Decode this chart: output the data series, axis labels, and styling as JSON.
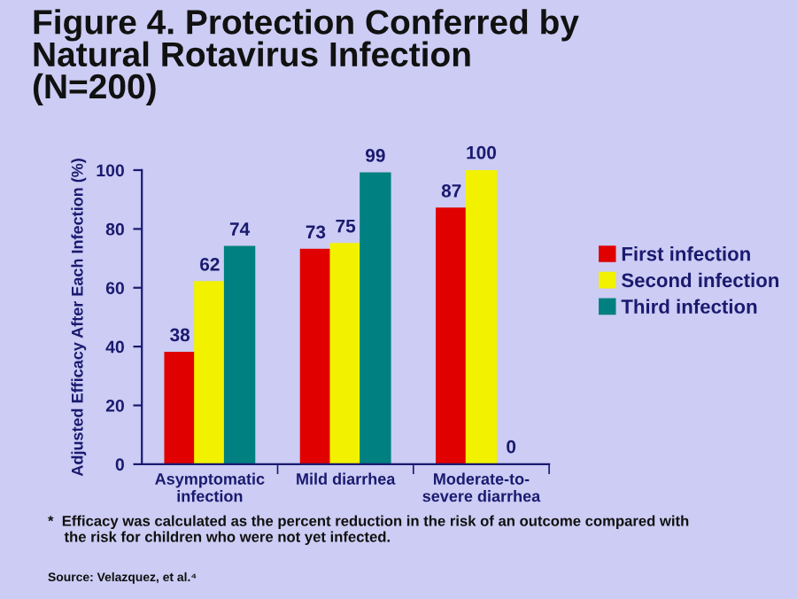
{
  "chart_data": {
    "type": "bar",
    "title": "Figure 4. Protection Conferred by\nNatural Rotavirus Infection\n(N=200)",
    "ylabel": "Adjusted Efficacy After Each Infection (%)",
    "categories": [
      "Asymptomatic\ninfection",
      "Mild diarrhea",
      "Moderate-to-\nsevere diarrhea"
    ],
    "series": [
      {
        "name": "First infection",
        "color": "#e00000",
        "values": [
          38,
          73,
          87
        ]
      },
      {
        "name": "Second infection",
        "color": "#f2f200",
        "values": [
          62,
          75,
          100
        ]
      },
      {
        "name": "Third infection",
        "color": "#008080",
        "values": [
          74,
          99,
          0
        ]
      }
    ],
    "ylim": [
      0,
      100
    ],
    "yticks": [
      0,
      20,
      40,
      60,
      80,
      100
    ],
    "data_labels": true,
    "legend": "right",
    "grid": false,
    "annotations": [
      "*  Efficacy was calculated as the percent reduction in the risk of an outcome compared with\n    the risk for children who were not yet infected.",
      "Source: Velazquez, et al.⁴"
    ]
  }
}
